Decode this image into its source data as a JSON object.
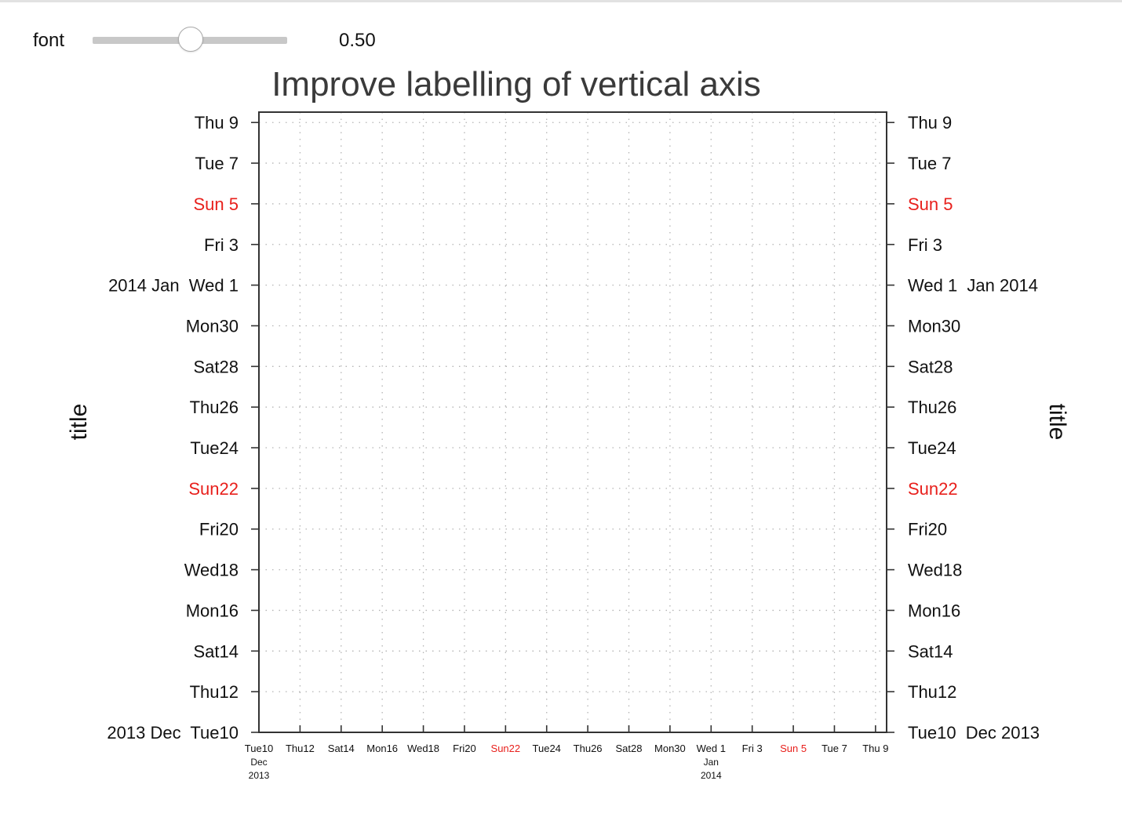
{
  "controls": {
    "font_label": "font",
    "slider_value": 0.5,
    "slider_value_text": "0.50"
  },
  "colors": {
    "weekend": "#e8201c",
    "text": "#111111",
    "frame": "#333333",
    "grid": "#b4b4b4"
  },
  "chart_data": {
    "type": "scatter",
    "title": "Improve labelling of vertical axis",
    "xlabel": "",
    "ylabel": "title",
    "ylabel_right": "title",
    "series": [],
    "grid": true,
    "xlim": [
      "2013-12-10",
      "2014-01-09"
    ],
    "ylim": [
      "2013-12-10",
      "2014-01-09"
    ],
    "x_ticks": [
      {
        "date": "2013-12-10",
        "label": "Tue10",
        "sub": [
          "Dec",
          "2013"
        ]
      },
      {
        "date": "2013-12-12",
        "label": "Thu12"
      },
      {
        "date": "2013-12-14",
        "label": "Sat14"
      },
      {
        "date": "2013-12-16",
        "label": "Mon16"
      },
      {
        "date": "2013-12-18",
        "label": "Wed18"
      },
      {
        "date": "2013-12-20",
        "label": "Fri20"
      },
      {
        "date": "2013-12-22",
        "label": "Sun22",
        "highlight": true
      },
      {
        "date": "2013-12-24",
        "label": "Tue24"
      },
      {
        "date": "2013-12-26",
        "label": "Thu26"
      },
      {
        "date": "2013-12-28",
        "label": "Sat28"
      },
      {
        "date": "2013-12-30",
        "label": "Mon30"
      },
      {
        "date": "2014-01-01",
        "label": "Wed 1",
        "sub": [
          "Jan",
          "2014"
        ]
      },
      {
        "date": "2014-01-03",
        "label": "Fri 3"
      },
      {
        "date": "2014-01-05",
        "label": "Sun 5",
        "highlight": true
      },
      {
        "date": "2014-01-07",
        "label": "Tue 7"
      },
      {
        "date": "2014-01-09",
        "label": "Thu 9"
      }
    ],
    "y_ticks": [
      {
        "date": "2013-12-10",
        "label": "Tue10",
        "left_prefix": "2013 Dec",
        "right_suffix": "Dec 2013"
      },
      {
        "date": "2013-12-12",
        "label": "Thu12"
      },
      {
        "date": "2013-12-14",
        "label": "Sat14"
      },
      {
        "date": "2013-12-16",
        "label": "Mon16"
      },
      {
        "date": "2013-12-18",
        "label": "Wed18"
      },
      {
        "date": "2013-12-20",
        "label": "Fri20"
      },
      {
        "date": "2013-12-22",
        "label": "Sun22",
        "highlight": true
      },
      {
        "date": "2013-12-24",
        "label": "Tue24"
      },
      {
        "date": "2013-12-26",
        "label": "Thu26"
      },
      {
        "date": "2013-12-28",
        "label": "Sat28"
      },
      {
        "date": "2013-12-30",
        "label": "Mon30"
      },
      {
        "date": "2014-01-01",
        "label": "Wed 1",
        "left_prefix": "2014 Jan",
        "right_suffix": "Jan 2014"
      },
      {
        "date": "2014-01-03",
        "label": "Fri 3"
      },
      {
        "date": "2014-01-05",
        "label": "Sun 5",
        "highlight": true
      },
      {
        "date": "2014-01-07",
        "label": "Tue 7"
      },
      {
        "date": "2014-01-09",
        "label": "Thu 9"
      }
    ]
  }
}
